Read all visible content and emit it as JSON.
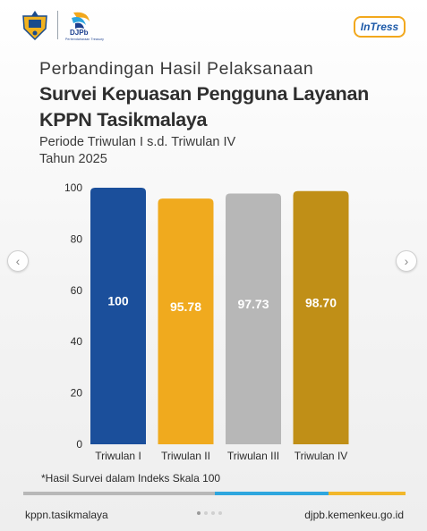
{
  "header": {
    "djpb_word": "DJPb",
    "djpb_sub": "Perbendaharaan Treasury",
    "intress_label": "InTress"
  },
  "title": {
    "line1": "Perbandingan Hasil Pelaksanaan",
    "line2": "Survei Kepuasan Pengguna Layanan",
    "line3": "KPPN Tasikmalaya",
    "line4": "Periode Triwulan I s.d. Triwulan IV",
    "line5": "Tahun 2025"
  },
  "chart_data": {
    "type": "bar",
    "categories": [
      "Triwulan I",
      "Triwulan II",
      "Triwulan III",
      "Triwulan IV"
    ],
    "values": [
      100,
      95.78,
      97.73,
      98.7
    ],
    "value_labels": [
      "100",
      "95.78",
      "97.73",
      "98.70"
    ],
    "bar_colors": [
      "#1b4f9b",
      "#f0aa1e",
      "#b7b7b7",
      "#c08f17"
    ],
    "yticks": [
      0,
      20,
      40,
      60,
      80,
      100
    ],
    "ylim": [
      0,
      100
    ],
    "grid": false,
    "legend": "none"
  },
  "note": "*Hasil Survei dalam Indeks Skala 100",
  "footer": {
    "left": "kppn.tasikmalaya",
    "right": "djpb.kemenkeu.go.id"
  },
  "colors": {
    "accent_blue": "#2ea6de",
    "accent_yellow": "#f2b72b",
    "djpb_blue": "#1b3f8f"
  }
}
